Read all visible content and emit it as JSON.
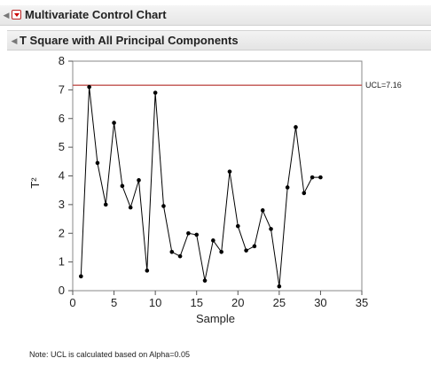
{
  "header": {
    "disclosure_icon": "triangle-down-icon",
    "hot_icon": "red-triangle-menu-icon",
    "title": "Multivariate Control Chart"
  },
  "subheader": {
    "disclosure_icon": "triangle-down-icon",
    "title": "T Square with All Principal Components"
  },
  "note": "Note: UCL is calculated based on Alpha=0.05",
  "chart_data": {
    "type": "line",
    "xlabel": "Sample",
    "ylabel": "T²",
    "xlim": [
      0,
      35
    ],
    "ylim": [
      0,
      8
    ],
    "xticks": [
      0,
      5,
      10,
      15,
      20,
      25,
      30,
      35
    ],
    "yticks": [
      0,
      1,
      2,
      3,
      4,
      5,
      6,
      7,
      8
    ],
    "grid": false,
    "x": [
      1,
      2,
      3,
      4,
      5,
      6,
      7,
      8,
      9,
      10,
      11,
      12,
      13,
      14,
      15,
      16,
      17,
      18,
      19,
      20,
      21,
      22,
      23,
      24,
      25,
      26,
      27,
      28,
      29,
      30
    ],
    "series": [
      {
        "values": [
          0.5,
          7.1,
          4.45,
          3.0,
          5.85,
          3.65,
          2.9,
          3.85,
          0.7,
          6.9,
          2.95,
          1.35,
          1.2,
          2.0,
          1.95,
          0.35,
          1.75,
          1.35,
          4.15,
          2.25,
          1.4,
          1.55,
          2.8,
          2.15,
          0.15,
          3.6,
          5.7,
          3.4,
          3.95,
          3.95
        ],
        "color": "#000000"
      }
    ],
    "ucl": {
      "value": 7.16,
      "label": "UCL=7.16",
      "color": "#c0504d"
    }
  }
}
